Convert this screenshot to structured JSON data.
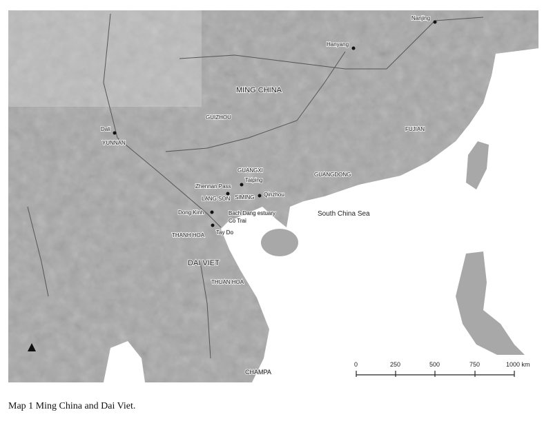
{
  "map": {
    "colors": {
      "land": "#a8a8a8",
      "sea": "#ffffff",
      "river": "#555555"
    },
    "places": {
      "nanjing": "Nanjing",
      "hanyang": "Hanyang",
      "dali": "Dali",
      "taiping": "Taiping",
      "zhennan_pass": "Zhennan Pass",
      "qinzhou": "Qinzhou",
      "dong_kinh": "Dong Kinh",
      "bach_dang": "Bach Dang estuary",
      "co_trai": "Co Trai",
      "tay_do": "Tay Do"
    },
    "regions": {
      "ming_china": "MING CHINA",
      "guizhou": "GUIZHOU",
      "fujian": "FUJIAN",
      "yunnan": "YUNNAN",
      "guangxi": "GUANGXI",
      "guangdong": "GUANGDONG",
      "lang_son": "LANG SON",
      "siming": "SIMING",
      "thanh_hoa": "THANH HOA",
      "dai_viet": "DAI VIET",
      "thuan_hoa": "THUAN HOA",
      "champa": "CHAMPA"
    },
    "sea": "South China Sea",
    "north_arrow_icon": "north-arrow-icon",
    "scale": {
      "ticks": [
        "0",
        "250",
        "500",
        "750",
        "1000 km"
      ]
    }
  },
  "caption": "Map 1  Ming China and Dai Viet."
}
